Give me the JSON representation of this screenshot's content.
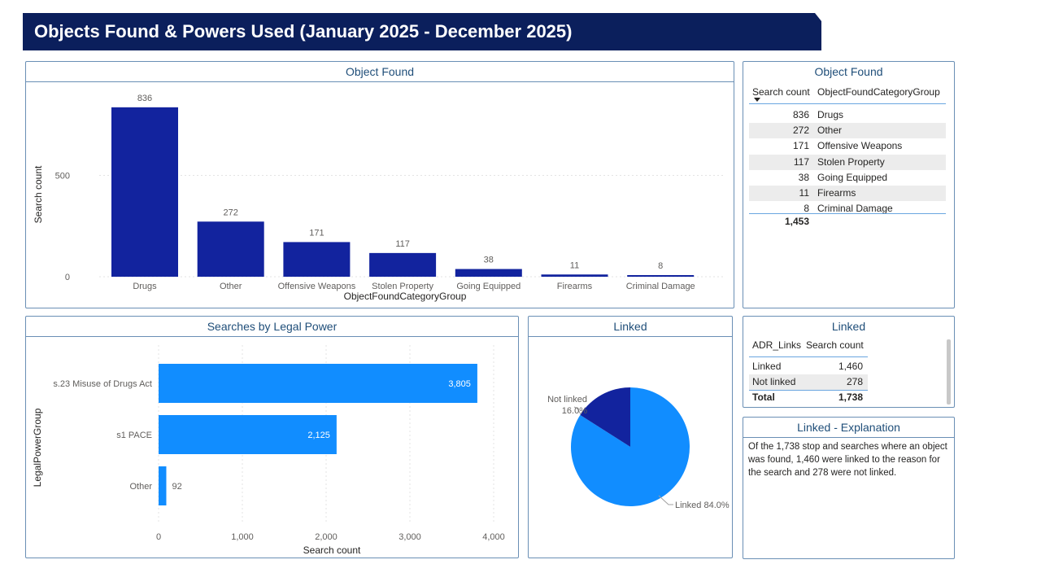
{
  "header": {
    "title": "Objects Found & Powers Used (January 2025 - December 2025)"
  },
  "colors": {
    "banner": "#0b1f5c",
    "dark_bar": "#12239e",
    "light_bar": "#118dff",
    "border": "#6a8fb5"
  },
  "object_found_chart": {
    "title": "Object Found",
    "chart_data": {
      "type": "bar",
      "title": "Object Found",
      "xlabel": "ObjectFoundCategoryGroup",
      "ylabel": "Search count",
      "categories": [
        "Drugs",
        "Other",
        "Offensive Weapons",
        "Stolen Property",
        "Going Equipped",
        "Firearms",
        "Criminal Damage"
      ],
      "values": [
        836,
        272,
        171,
        117,
        38,
        11,
        8
      ],
      "ylim": [
        0,
        1000
      ],
      "yticks": [
        "0",
        "500",
        "1,000"
      ],
      "grid": true
    }
  },
  "object_found_table": {
    "title": "Object Found",
    "headers": [
      "Search count",
      "ObjectFoundCategoryGroup"
    ],
    "rows": [
      {
        "count": "836",
        "category": "Drugs"
      },
      {
        "count": "272",
        "category": "Other"
      },
      {
        "count": "171",
        "category": "Offensive Weapons"
      },
      {
        "count": "117",
        "category": "Stolen Property"
      },
      {
        "count": "38",
        "category": "Going Equipped"
      },
      {
        "count": "11",
        "category": "Firearms"
      },
      {
        "count": "8",
        "category": "Criminal Damage"
      }
    ],
    "total": "1,453"
  },
  "legal_power_chart": {
    "title": "Searches by Legal Power",
    "chart_data": {
      "type": "bar",
      "orientation": "horizontal",
      "title": "Searches by Legal Power",
      "xlabel": "Search count",
      "ylabel": "LegalPowerGroup",
      "categories": [
        "s.23 Misuse of Drugs Act",
        "s1 PACE",
        "Other"
      ],
      "values": [
        3805,
        2125,
        92
      ],
      "labels": [
        "3,805",
        "2,125",
        "92"
      ],
      "xlim": [
        0,
        4000
      ],
      "xticks": [
        "0",
        "1,000",
        "2,000",
        "3,000",
        "4,000"
      ],
      "grid": true
    }
  },
  "linked_pie": {
    "title": "Linked",
    "chart_data": {
      "type": "pie",
      "title": "Linked",
      "categories": [
        "Linked",
        "Not linked"
      ],
      "values": [
        84.0,
        16.0
      ],
      "labels": [
        "Linked 84.0%",
        "Not linked",
        "16.0%"
      ]
    }
  },
  "linked_table": {
    "title": "Linked",
    "headers": [
      "ADR_Links",
      "Search count"
    ],
    "rows": [
      {
        "label": "Linked",
        "count": "1,460"
      },
      {
        "label": "Not linked",
        "count": "278"
      }
    ],
    "total_label": "Total",
    "total": "1,738"
  },
  "explanation": {
    "title": "Linked - Explanation",
    "text": "Of the 1,738 stop and searches where an object was found, 1,460 were linked to the reason for the search and 278 were not linked."
  }
}
